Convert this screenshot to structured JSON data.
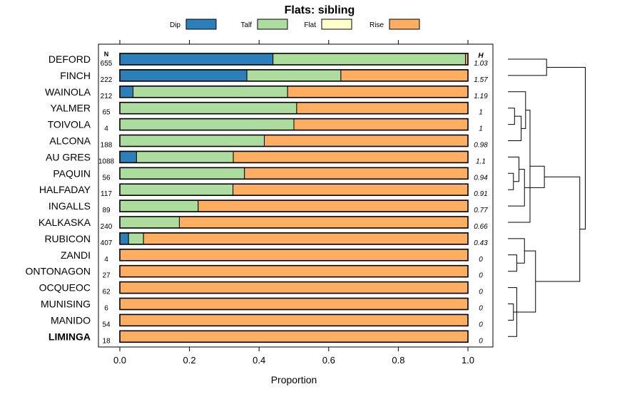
{
  "chart_data": {
    "type": "bar",
    "stacked": true,
    "orientation": "horizontal",
    "title": "Flats: sibling",
    "xlabel": "Proportion",
    "ylabel": "",
    "xlim": [
      0,
      1
    ],
    "xticks": [
      "0.0",
      "0.2",
      "0.4",
      "0.6",
      "0.8",
      "1.0"
    ],
    "n_header": "N",
    "h_header": "H",
    "legend_position": "top",
    "legend": [
      {
        "name": "Dip",
        "color": "#2c7fb8"
      },
      {
        "name": "Talf",
        "color": "#addd9e"
      },
      {
        "name": "Flat",
        "color": "#ffffcc"
      },
      {
        "name": "Rise",
        "color": "#fdae61"
      }
    ],
    "categories": [
      "DEFORD",
      "FINCH",
      "WAINOLA",
      "YALMER",
      "TOIVOLA",
      "ALCONA",
      "AU GRES",
      "PAQUIN",
      "HALFADAY",
      "INGALLS",
      "KALKASKA",
      "RUBICON",
      "ZANDI",
      "ONTONAGON",
      "OCQUEOC",
      "MUNISING",
      "MANIDO",
      "LIMINGA"
    ],
    "bold_category": "LIMINGA",
    "n": [
      "655",
      "222",
      "212",
      "65",
      "4",
      "188",
      "1088",
      "56",
      "117",
      "89",
      "240",
      "407",
      "4",
      "27",
      "62",
      "6",
      "54",
      "18"
    ],
    "h": [
      "1.03",
      "1.57",
      "1.19",
      "1",
      "1",
      "0.98",
      "1.1",
      "0.94",
      "0.91",
      "0.77",
      "0.66",
      "0.43",
      "0",
      "0",
      "0",
      "0",
      "0",
      "0"
    ],
    "series": [
      {
        "name": "Dip",
        "values": [
          0.44,
          0.365,
          0.038,
          0,
          0,
          0,
          0.048,
          0,
          0,
          0,
          0,
          0.025,
          0,
          0,
          0,
          0,
          0,
          0
        ]
      },
      {
        "name": "Talf",
        "values": [
          0.553,
          0.27,
          0.444,
          0.508,
          0.5,
          0.415,
          0.278,
          0.358,
          0.325,
          0.225,
          0.171,
          0.043,
          0,
          0,
          0,
          0,
          0,
          0
        ]
      },
      {
        "name": "Flat",
        "values": [
          0,
          0,
          0,
          0,
          0,
          0,
          0,
          0,
          0,
          0,
          0,
          0,
          0,
          0,
          0,
          0,
          0,
          0
        ]
      },
      {
        "name": "Rise",
        "values": [
          0.007,
          0.365,
          0.518,
          0.492,
          0.5,
          0.585,
          0.674,
          0.642,
          0.675,
          0.775,
          0.829,
          0.932,
          1,
          1,
          1,
          1,
          1,
          1
        ]
      }
    ],
    "dendrogram": {
      "orientation": "right",
      "merges": [
        {
          "a": "15",
          "b": "16",
          "h": 0.5
        },
        {
          "a": "14",
          "b": "17",
          "h": 0.8
        },
        {
          "a": "M0",
          "b": "M1",
          "h": 1.0
        },
        {
          "a": "13",
          "b": "12",
          "h": 0.8
        },
        {
          "a": "11",
          "b": "M3",
          "h": 1.5
        },
        {
          "a": "M4",
          "b": "M2",
          "h": 2.5
        },
        {
          "a": "8",
          "b": "7",
          "h": 0.5
        },
        {
          "a": "M6",
          "b": "6",
          "h": 1.0
        },
        {
          "a": "M7",
          "b": "9",
          "h": 1.5
        },
        {
          "a": "3",
          "b": "4",
          "h": 0.6
        },
        {
          "a": "M9",
          "b": "5",
          "h": 1.2
        },
        {
          "a": "2",
          "b": "M10",
          "h": 1.6
        },
        {
          "a": "M11",
          "b": "10",
          "h": 2.0
        },
        {
          "a": "M12",
          "b": "M8",
          "h": 3.3
        },
        {
          "a": "M13",
          "b": "M5",
          "h": 6.5
        },
        {
          "a": "0",
          "b": "1",
          "h": 3.5
        },
        {
          "a": "M15",
          "b": "M14",
          "h": 7.0
        }
      ]
    }
  }
}
